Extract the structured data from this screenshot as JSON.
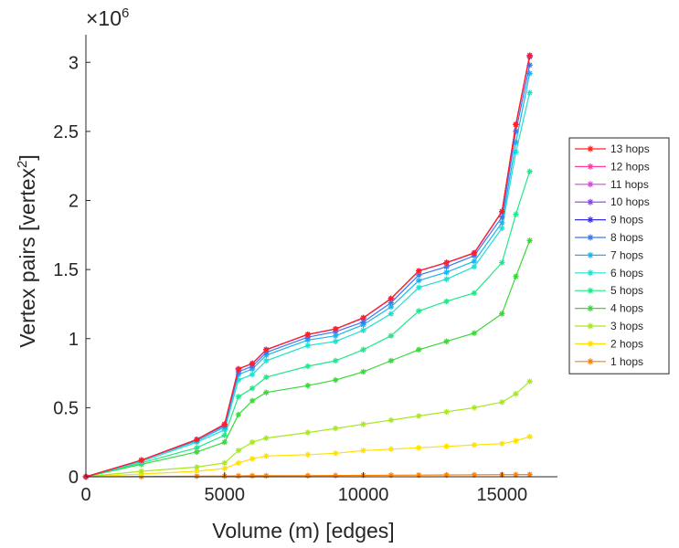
{
  "chart_data": {
    "type": "line",
    "title": "",
    "xlabel": "Volume (m) [edges]",
    "ylabel": "Vertex pairs [vertex",
    "ylabel_exponent": "2",
    "ylabel_suffix": "]",
    "y_multiplier": "×10",
    "y_multiplier_exponent": "6",
    "xlim": [
      0,
      17000
    ],
    "ylim": [
      0,
      3.2
    ],
    "xticks": [
      0,
      5000,
      10000,
      15000
    ],
    "xtick_labels": [
      "0",
      "5000",
      "10000",
      "15000"
    ],
    "yticks": [
      0,
      0.5,
      1,
      1.5,
      2,
      2.5,
      3
    ],
    "ytick_labels": [
      "0",
      "0.5",
      "1",
      "1.5",
      "2",
      "2.5",
      "3"
    ],
    "grid": false,
    "legend_position": "right",
    "x": [
      0,
      2000,
      4000,
      5000,
      5500,
      6000,
      6500,
      8000,
      9000,
      10000,
      11000,
      12000,
      13000,
      14000,
      15000,
      15500,
      16000
    ],
    "series": [
      {
        "name": "13 hops",
        "color": "#ff2020",
        "values": [
          0,
          0.12,
          0.27,
          0.38,
          0.78,
          0.82,
          0.92,
          1.03,
          1.07,
          1.15,
          1.29,
          1.49,
          1.55,
          1.62,
          1.92,
          2.55,
          3.05
        ]
      },
      {
        "name": "12 hops",
        "color": "#ff3aa0",
        "values": [
          0,
          0.12,
          0.27,
          0.38,
          0.78,
          0.82,
          0.92,
          1.03,
          1.07,
          1.15,
          1.29,
          1.49,
          1.55,
          1.62,
          1.92,
          2.55,
          3.05
        ]
      },
      {
        "name": "11 hops",
        "color": "#e040e8",
        "values": [
          0,
          0.12,
          0.27,
          0.38,
          0.78,
          0.82,
          0.92,
          1.03,
          1.07,
          1.15,
          1.29,
          1.49,
          1.55,
          1.62,
          1.92,
          2.55,
          3.05
        ]
      },
      {
        "name": "10 hops",
        "color": "#8a3ef0",
        "values": [
          0,
          0.12,
          0.27,
          0.38,
          0.78,
          0.82,
          0.92,
          1.03,
          1.07,
          1.15,
          1.29,
          1.49,
          1.55,
          1.62,
          1.92,
          2.55,
          3.05
        ]
      },
      {
        "name": "9 hops",
        "color": "#3a30e0",
        "values": [
          0,
          0.12,
          0.27,
          0.38,
          0.78,
          0.82,
          0.92,
          1.03,
          1.07,
          1.15,
          1.29,
          1.49,
          1.55,
          1.62,
          1.92,
          2.55,
          3.04
        ]
      },
      {
        "name": "8 hops",
        "color": "#3a78f0",
        "values": [
          0,
          0.12,
          0.27,
          0.37,
          0.76,
          0.8,
          0.9,
          1.01,
          1.05,
          1.12,
          1.26,
          1.46,
          1.52,
          1.6,
          1.88,
          2.5,
          2.98
        ]
      },
      {
        "name": "7 hops",
        "color": "#1ab4f0",
        "values": [
          0,
          0.12,
          0.26,
          0.36,
          0.74,
          0.78,
          0.88,
          0.99,
          1.02,
          1.1,
          1.23,
          1.42,
          1.48,
          1.56,
          1.84,
          2.42,
          2.92
        ]
      },
      {
        "name": "6 hops",
        "color": "#1ee0d0",
        "values": [
          0,
          0.11,
          0.25,
          0.34,
          0.7,
          0.74,
          0.84,
          0.95,
          0.98,
          1.06,
          1.18,
          1.37,
          1.43,
          1.52,
          1.8,
          2.35,
          2.78
        ]
      },
      {
        "name": "5 hops",
        "color": "#20e888",
        "values": [
          0,
          0.1,
          0.21,
          0.3,
          0.58,
          0.64,
          0.72,
          0.8,
          0.84,
          0.92,
          1.02,
          1.2,
          1.27,
          1.33,
          1.55,
          1.9,
          2.21
        ]
      },
      {
        "name": "4 hops",
        "color": "#3ad83a",
        "values": [
          0,
          0.09,
          0.18,
          0.25,
          0.45,
          0.55,
          0.61,
          0.66,
          0.7,
          0.76,
          0.84,
          0.92,
          0.98,
          1.04,
          1.18,
          1.45,
          1.71
        ]
      },
      {
        "name": "3 hops",
        "color": "#a8e820",
        "values": [
          0,
          0.04,
          0.07,
          0.1,
          0.19,
          0.25,
          0.28,
          0.32,
          0.35,
          0.38,
          0.41,
          0.44,
          0.47,
          0.5,
          0.54,
          0.6,
          0.69
        ]
      },
      {
        "name": "2 hops",
        "color": "#ffe000",
        "values": [
          0,
          0.02,
          0.04,
          0.06,
          0.1,
          0.13,
          0.15,
          0.16,
          0.17,
          0.19,
          0.2,
          0.21,
          0.22,
          0.23,
          0.24,
          0.26,
          0.29
        ]
      },
      {
        "name": "1 hops",
        "color": "#ff8000",
        "values": [
          0,
          0.002,
          0.004,
          0.005,
          0.006,
          0.007,
          0.007,
          0.008,
          0.009,
          0.01,
          0.011,
          0.012,
          0.013,
          0.014,
          0.015,
          0.015,
          0.016
        ]
      }
    ]
  }
}
